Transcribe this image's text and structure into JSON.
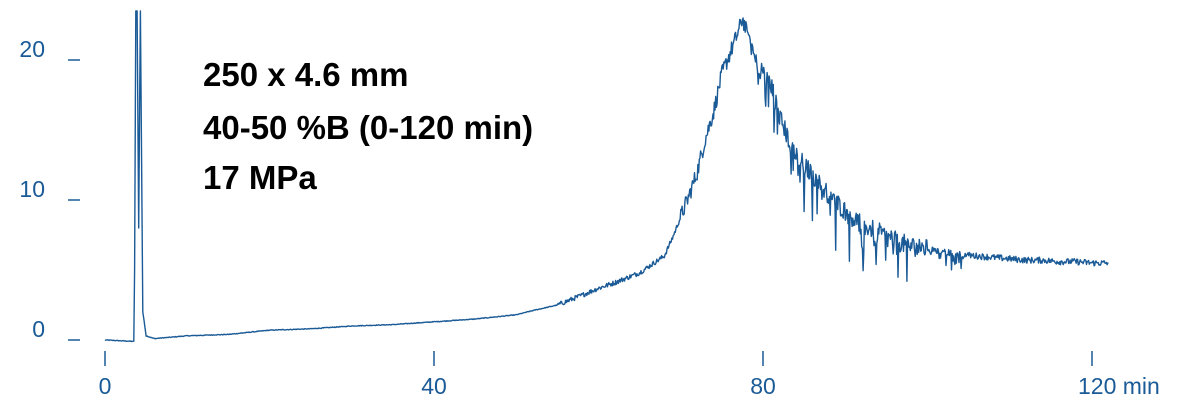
{
  "chart_data": {
    "type": "line",
    "title": "",
    "xlabel": "",
    "ylabel": "",
    "x_unit": "min",
    "xlim": [
      0,
      122
    ],
    "ylim": [
      0,
      24
    ],
    "x_ticks": [
      {
        "value": 0,
        "label": "0"
      },
      {
        "value": 40,
        "label": "40"
      },
      {
        "value": 80,
        "label": "80"
      },
      {
        "value": 120,
        "label": "120 min"
      }
    ],
    "y_ticks": [
      {
        "value": 0,
        "label": "0"
      },
      {
        "value": 10,
        "label": "10"
      },
      {
        "value": 20,
        "label": "20"
      }
    ],
    "annotations": [
      "250 x 4.6 mm",
      "40-50 %B (0-120 min)",
      "17 MPa"
    ],
    "grid": false,
    "color": "#1a5a96",
    "series": [
      {
        "x": [
          0,
          3.5,
          3.6,
          3.75,
          3.9,
          4.1,
          4.3,
          4.6,
          5,
          6,
          8,
          10,
          15,
          20,
          25,
          30,
          35,
          40,
          45,
          50,
          52,
          55,
          58,
          60,
          62,
          65,
          68,
          69,
          70,
          71,
          72,
          73,
          74,
          75,
          76,
          77,
          77.5,
          78,
          78.5,
          79,
          80,
          81,
          82,
          83,
          84,
          85,
          86,
          87,
          88,
          89,
          90,
          91,
          92,
          93,
          94,
          95,
          96,
          97,
          98,
          100,
          102,
          104,
          106,
          108,
          110,
          112,
          114,
          116,
          118,
          120,
          122
        ],
        "y": [
          0,
          -0.1,
          5,
          23.5,
          23.5,
          8,
          23.5,
          2,
          0.3,
          0.1,
          0.2,
          0.3,
          0.4,
          0.7,
          0.8,
          1.0,
          1.1,
          1.3,
          1.5,
          1.8,
          2.1,
          2.5,
          3.2,
          3.7,
          4.1,
          4.8,
          6.0,
          7.3,
          8.8,
          10.3,
          12.0,
          14.4,
          16.3,
          19.0,
          20.5,
          22.0,
          23.0,
          22.0,
          21.5,
          20.0,
          19.2,
          18.2,
          16.0,
          14.5,
          13.2,
          12.5,
          11.8,
          11.0,
          10.4,
          9.8,
          9.2,
          8.7,
          8.3,
          8.0,
          7.7,
          7.4,
          7.1,
          6.9,
          6.7,
          6.5,
          6.3,
          6.1,
          6.0,
          5.9,
          5.8,
          5.7,
          5.7,
          5.6,
          5.6,
          5.5,
          5.5
        ]
      }
    ]
  }
}
